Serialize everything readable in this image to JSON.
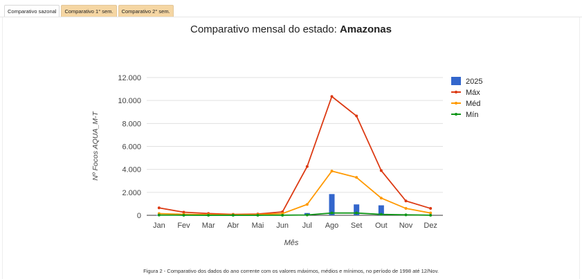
{
  "tabs": [
    {
      "label": "Comparativo sazonal",
      "active": true
    },
    {
      "label": "Comparativo 1° sem.",
      "active": false
    },
    {
      "label": "Comparativo 2° sem.",
      "active": false
    }
  ],
  "title_prefix": "Comparativo mensal do estado: ",
  "title_state": "Amazonas",
  "caption": "Figura 2 - Comparativo dos dados do ano corrente com os valores máximos, médios e mínimos, no período de 1998 até 12/Nov.",
  "colors": {
    "bar_2025": "#3366cc",
    "max": "#dc3912",
    "med": "#ff9900",
    "min": "#109618",
    "grid": "#e0e0e0",
    "axis_text": "#444444"
  },
  "chart_data": {
    "type": "bar+line",
    "categories": [
      "Jan",
      "Fev",
      "Mar",
      "Abr",
      "Mai",
      "Jun",
      "Jul",
      "Ago",
      "Set",
      "Out",
      "Nov",
      "Dez"
    ],
    "xlabel": "Mês",
    "ylabel": "Nº Focos AQUA_M-T",
    "ylim": [
      0,
      12000
    ],
    "yticks": [
      0,
      2000,
      4000,
      6000,
      8000,
      10000,
      12000
    ],
    "ytick_labels": [
      "0",
      "2.000",
      "4.000",
      "6.000",
      "8.000",
      "10.000",
      "12.000"
    ],
    "grid": true,
    "legend_position": "right",
    "series": [
      {
        "name": "2025",
        "kind": "bar",
        "values": [
          30,
          20,
          15,
          10,
          20,
          30,
          200,
          1850,
          950,
          870,
          60,
          null
        ]
      },
      {
        "name": "Máx",
        "kind": "line",
        "values": [
          650,
          270,
          160,
          80,
          110,
          300,
          4250,
          10350,
          8650,
          3900,
          1250,
          600
        ]
      },
      {
        "name": "Méd",
        "kind": "line",
        "values": [
          150,
          90,
          60,
          40,
          60,
          150,
          950,
          3850,
          3300,
          1500,
          600,
          200
        ]
      },
      {
        "name": "Mín",
        "kind": "line",
        "values": [
          20,
          10,
          5,
          5,
          5,
          10,
          30,
          200,
          200,
          80,
          40,
          10
        ]
      }
    ]
  }
}
